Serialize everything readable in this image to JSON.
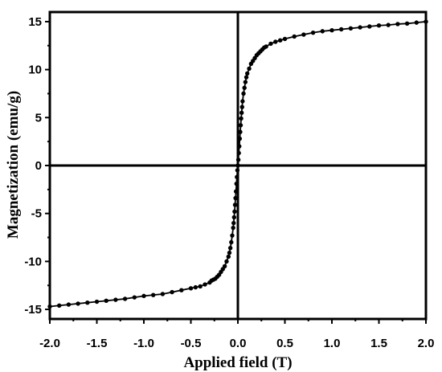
{
  "chart_data": {
    "type": "scatter",
    "title": "",
    "xlabel": "Applied field (T)",
    "ylabel": "Magnetization (emu/g)",
    "xlim": [
      -2.0,
      2.0
    ],
    "ylim": [
      -16,
      16
    ],
    "grid": false,
    "legend": "none",
    "x_ticks": [
      "-2.0",
      "-1.5",
      "-1.0",
      "-0.5",
      "0.0",
      "0.5",
      "1.0",
      "1.5",
      "2.0"
    ],
    "y_ticks": [
      "-15",
      "-10",
      "-5",
      "0",
      "5",
      "10",
      "15"
    ],
    "marker_color": "#000000",
    "series": [
      {
        "x": [
          -2.0,
          -1.9,
          -1.8,
          -1.7,
          -1.6,
          -1.5,
          -1.4,
          -1.3,
          -1.2,
          -1.1,
          -1.0,
          -0.9,
          -0.8,
          -0.7,
          -0.6,
          -0.5,
          -0.45,
          -0.4,
          -0.35,
          -0.3,
          -0.28,
          -0.26,
          -0.24,
          -0.22,
          -0.2,
          -0.18,
          -0.16,
          -0.14,
          -0.12,
          -0.1,
          -0.09,
          -0.08,
          -0.07,
          -0.06,
          -0.05,
          -0.045,
          -0.04,
          -0.035,
          -0.03,
          -0.025,
          -0.02,
          -0.015,
          -0.01,
          -0.005,
          0.0,
          0.005,
          0.01,
          0.015,
          0.02,
          0.025,
          0.03,
          0.035,
          0.04,
          0.045,
          0.05,
          0.06,
          0.07,
          0.08,
          0.09,
          0.1,
          0.12,
          0.14,
          0.16,
          0.18,
          0.2,
          0.22,
          0.24,
          0.26,
          0.28,
          0.3,
          0.35,
          0.4,
          0.45,
          0.5,
          0.6,
          0.7,
          0.8,
          0.9,
          1.0,
          1.1,
          1.2,
          1.3,
          1.4,
          1.5,
          1.6,
          1.7,
          1.8,
          1.9,
          2.0
        ],
        "y": [
          -14.7,
          -14.6,
          -14.5,
          -14.4,
          -14.3,
          -14.2,
          -14.1,
          -14.0,
          -13.9,
          -13.75,
          -13.6,
          -13.5,
          -13.4,
          -13.2,
          -13.0,
          -12.8,
          -12.7,
          -12.6,
          -12.4,
          -12.2,
          -12.0,
          -11.9,
          -11.8,
          -11.6,
          -11.4,
          -11.1,
          -10.8,
          -10.5,
          -10.0,
          -9.5,
          -9.1,
          -8.6,
          -8.0,
          -7.3,
          -6.5,
          -6.0,
          -5.4,
          -4.8,
          -4.1,
          -3.4,
          -2.7,
          -1.9,
          -1.2,
          -0.5,
          0.0,
          0.6,
          1.3,
          2.0,
          2.8,
          3.5,
          4.2,
          4.9,
          5.5,
          6.1,
          6.7,
          7.5,
          8.1,
          8.7,
          9.2,
          9.6,
          10.1,
          10.6,
          10.9,
          11.2,
          11.5,
          11.7,
          11.9,
          12.1,
          12.3,
          12.4,
          12.7,
          12.9,
          13.05,
          13.2,
          13.45,
          13.65,
          13.85,
          14.0,
          14.1,
          14.2,
          14.3,
          14.4,
          14.5,
          14.6,
          14.65,
          14.75,
          14.8,
          14.9,
          15.0
        ]
      }
    ]
  }
}
